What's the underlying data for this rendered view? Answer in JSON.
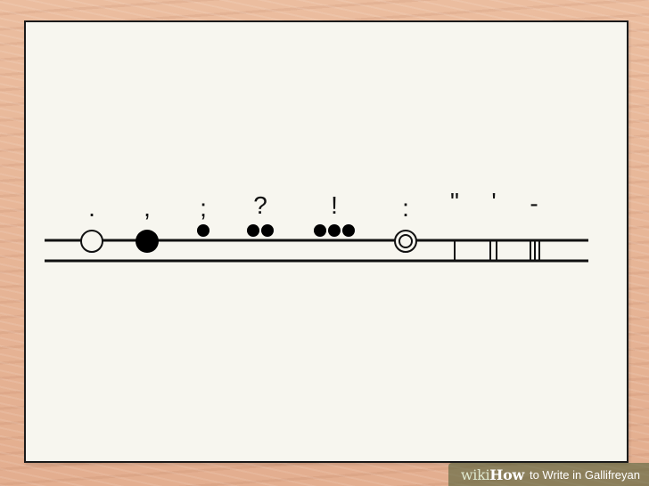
{
  "diagram": {
    "symbols": [
      {
        "label": ".",
        "kind": "circle-outline"
      },
      {
        "label": ",",
        "kind": "circle-filled"
      },
      {
        "label": ";",
        "kind": "one-dot"
      },
      {
        "label": "?",
        "kind": "two-dots"
      },
      {
        "label": "!",
        "kind": "three-dots"
      },
      {
        "label": ":",
        "kind": "double-circle"
      },
      {
        "label": "\"",
        "kind": "one-line"
      },
      {
        "label": "'",
        "kind": "two-lines"
      },
      {
        "label": "-",
        "kind": "three-lines"
      }
    ]
  },
  "watermark": {
    "logo_wiki": "wiki",
    "logo_how": "How",
    "title": "to Write in Gallifreyan"
  }
}
